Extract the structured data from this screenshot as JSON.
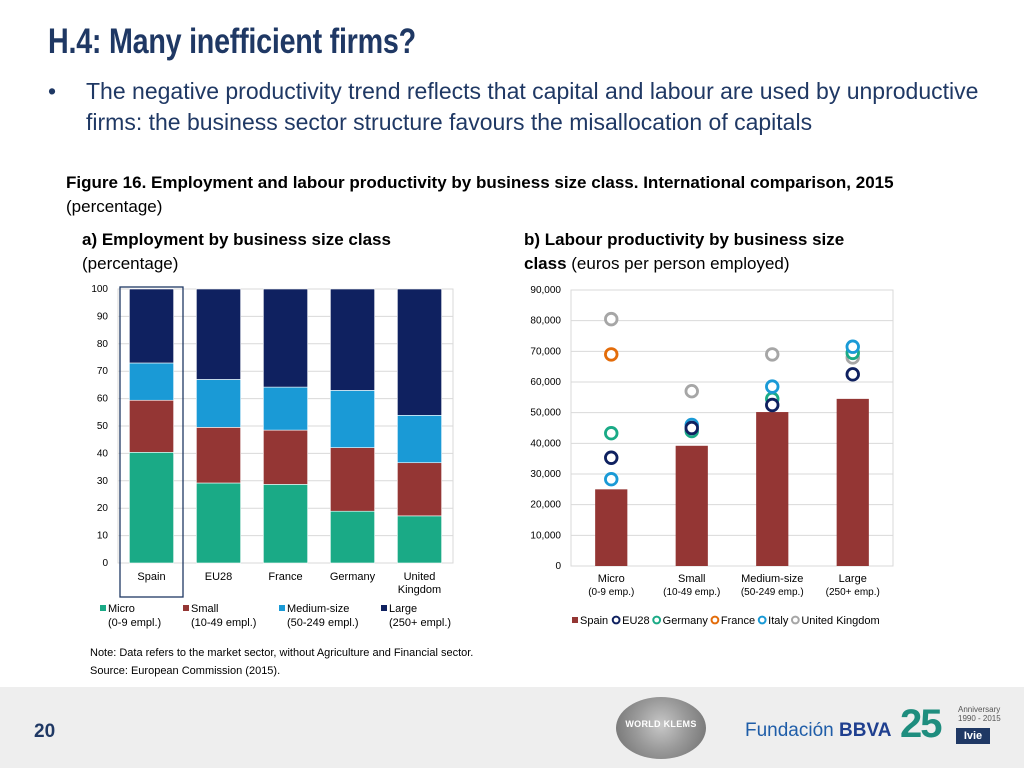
{
  "slide": {
    "title": "H.4: Many inefficient firms?",
    "bullet_marker": "•",
    "bullet": "The negative productivity trend reflects that capital and labour are used by unproductive firms: the business sector structure favours the misallocation of capitals",
    "figure_caption_bold": "Figure 16. Employment and labour productivity by business size class. International comparison, 2015",
    "figure_caption_normal": " (percentage)",
    "note": "Note: Data refers to the market sector, without Agriculture and Financial sector.",
    "source": "Source: European Commission (2015).",
    "dot": ".",
    "page_number": "20"
  },
  "logos": {
    "klems": "WORLD KLEMS",
    "bbva_prefix": "Fundación ",
    "bbva_name": "BBVA",
    "ivie_number": "25",
    "ivie_anniversary": "Anniversary",
    "ivie_years": "1990 - 2015",
    "ivie_name": "Ivie"
  },
  "colors": {
    "title": "#1f3864",
    "micro": "#1aaa86",
    "small": "#943634",
    "medium": "#1a9ad6",
    "large": "#0f2160",
    "spain_bar": "#943634",
    "eu28": "#0f2160",
    "germany": "#1aaa86",
    "france": "#e36c0a",
    "italy": "#1a9ad6",
    "uk": "#a6a6a6"
  },
  "chart_data": [
    {
      "type": "bar",
      "stacked": true,
      "title_bold": "a) Employment by business size class",
      "title_normal": "(percentage)",
      "categories": [
        "Spain",
        "EU28",
        "France",
        "Germany",
        "United Kingdom"
      ],
      "categories_lines": [
        [
          "Spain"
        ],
        [
          "EU28"
        ],
        [
          "France"
        ],
        [
          "Germany"
        ],
        [
          "United",
          "Kingdom"
        ]
      ],
      "highlighted_category": "Spain",
      "series": [
        {
          "name": "Micro",
          "name_line2": "(0-9 empl.)",
          "values": [
            40.4,
            29.2,
            28.7,
            18.9,
            17.2
          ]
        },
        {
          "name": "Small",
          "name_line2": "(10-49 empl.)",
          "values": [
            19.0,
            20.3,
            19.8,
            23.2,
            19.4
          ]
        },
        {
          "name": "Medium-size",
          "name_line2": "(50-249 empl.)",
          "values": [
            13.6,
            17.5,
            15.7,
            20.9,
            17.3
          ]
        },
        {
          "name": "Large",
          "name_line2": "(250+ empl.)",
          "values": [
            27.0,
            33.0,
            35.8,
            37.0,
            46.1
          ]
        }
      ],
      "ylim": [
        0,
        100
      ],
      "yticks": [
        "0",
        "10",
        "20",
        "30",
        "40",
        "50",
        "60",
        "70",
        "80",
        "90",
        "100"
      ],
      "grid": true,
      "legend": "bottom"
    },
    {
      "type": "bar",
      "overlay": "scatter",
      "title_bold_1": "b) Labour productivity by business size",
      "title_bold_2": "class",
      "title_normal": " (euros per person employed)",
      "categories": [
        "Micro",
        "Small",
        "Medium-size",
        "Large"
      ],
      "categories_line2": [
        "(0-9 emp.)",
        "(10-49 emp.)",
        "(50-249 emp.)",
        "(250+ emp.)"
      ],
      "bar_series": {
        "name": "Spain",
        "values": [
          25000,
          39200,
          50200,
          54500
        ]
      },
      "marker_series": [
        {
          "name": "EU28",
          "values": [
            35300,
            45000,
            52500,
            62500
          ]
        },
        {
          "name": "Germany",
          "values": [
            43300,
            44000,
            54500,
            69500
          ]
        },
        {
          "name": "France",
          "values": [
            69000,
            null,
            null,
            null
          ]
        },
        {
          "name": "Italy",
          "values": [
            28300,
            46000,
            58500,
            71500
          ]
        },
        {
          "name": "United Kingdom",
          "values": [
            80500,
            57000,
            69000,
            68000
          ]
        }
      ],
      "ylim": [
        0,
        90000
      ],
      "yticks": [
        "0",
        "10,000",
        "20,000",
        "30,000",
        "40,000",
        "50,000",
        "60,000",
        "70,000",
        "80,000",
        "90,000"
      ],
      "grid": true,
      "legend": "bottom"
    }
  ]
}
